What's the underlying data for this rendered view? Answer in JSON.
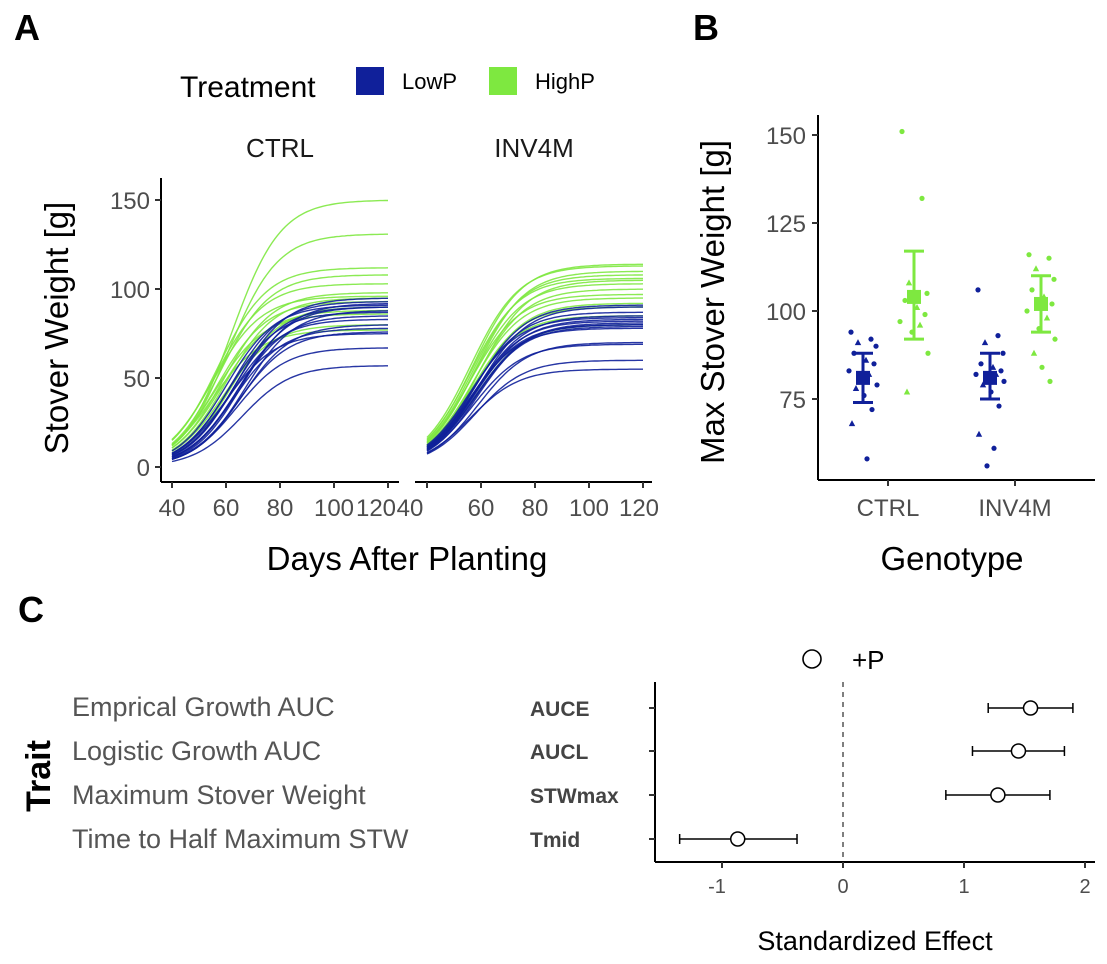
{
  "colors": {
    "LowP": "#10209a",
    "HighP": "#7ee840",
    "axis": "#000000",
    "tick_text": "#4d4d4d"
  },
  "panels": {
    "a": "A",
    "b": "B",
    "c": "C"
  },
  "chart_data": [
    {
      "panel": "A",
      "type": "line",
      "legend": {
        "title": "Treatment",
        "entries": [
          "LowP",
          "HighP"
        ],
        "placement": "top"
      },
      "facets": [
        "CTRL",
        "INV4M"
      ],
      "xlabel": "Days After Planting",
      "ylabel": "Stover Weight [g]",
      "xlim": [
        40,
        120
      ],
      "ylim": [
        0,
        160
      ],
      "xticks": [
        "40",
        "60",
        "80",
        "100",
        "120"
      ],
      "yticks": [
        "0",
        "50",
        "100",
        "150"
      ],
      "curve_model": "logistic",
      "series": [
        {
          "facet": "CTRL",
          "treatment": "LowP",
          "asymptotes": [
            95,
            93,
            92,
            91,
            90,
            90,
            88,
            87,
            85,
            83,
            80,
            78,
            76,
            75,
            67,
            57
          ],
          "midpoints": [
            64,
            62,
            66,
            60,
            65,
            63,
            67,
            61,
            64,
            62,
            66,
            63,
            65,
            60,
            64,
            66
          ]
        },
        {
          "facet": "CTRL",
          "treatment": "HighP",
          "asymptotes": [
            150,
            131,
            112,
            108,
            103,
            98,
            96,
            95,
            93,
            90,
            88,
            86,
            80,
            77
          ],
          "midpoints": [
            62,
            61,
            57,
            58,
            56,
            59,
            55,
            60,
            57,
            62,
            58,
            56,
            59,
            55
          ]
        },
        {
          "facet": "INV4M",
          "treatment": "LowP",
          "asymptotes": [
            91,
            90,
            87,
            85,
            84,
            83,
            82,
            81,
            80,
            80,
            79,
            78,
            70,
            69,
            60,
            55
          ],
          "midpoints": [
            58,
            59,
            57,
            58,
            56,
            58,
            57,
            59,
            58,
            57,
            58,
            56,
            59,
            57,
            58,
            56
          ]
        },
        {
          "facet": "INV4M",
          "treatment": "HighP",
          "asymptotes": [
            114,
            113,
            110,
            108,
            106,
            105,
            103,
            100,
            97,
            95,
            92,
            90,
            85,
            80
          ],
          "midpoints": [
            57,
            56,
            58,
            57,
            56,
            59,
            57,
            58,
            56,
            57,
            58,
            57,
            56,
            58
          ]
        }
      ]
    },
    {
      "panel": "B",
      "type": "scatter",
      "xlabel": "Genotype",
      "ylabel": "Max Stover Weight [g]",
      "categories": [
        "CTRL",
        "INV4M"
      ],
      "ylim": [
        62,
        155
      ],
      "yticks": [
        "75",
        "100",
        "125",
        "150"
      ],
      "groups": [
        {
          "genotype": "CTRL",
          "treatment": "LowP",
          "mean": 81,
          "ci": [
            74,
            88
          ],
          "points": [
            94,
            92,
            91,
            90,
            88,
            86,
            85,
            83,
            82,
            81,
            79,
            78,
            76,
            72,
            68,
            58
          ]
        },
        {
          "genotype": "CTRL",
          "treatment": "HighP",
          "mean": 104,
          "ci": [
            92,
            117
          ],
          "points": [
            151,
            132,
            108,
            105,
            103,
            101,
            99,
            97,
            96,
            94,
            88,
            77
          ]
        },
        {
          "genotype": "INV4M",
          "treatment": "LowP",
          "mean": 81,
          "ci": [
            75,
            88
          ],
          "points": [
            106,
            93,
            91,
            88,
            85,
            84,
            83,
            82,
            82,
            81,
            80,
            79,
            77,
            73,
            65,
            61,
            56
          ]
        },
        {
          "genotype": "INV4M",
          "treatment": "HighP",
          "mean": 102,
          "ci": [
            94,
            110
          ],
          "points": [
            116,
            115,
            112,
            109,
            106,
            104,
            102,
            100,
            98,
            95,
            92,
            88,
            84,
            80
          ]
        }
      ]
    },
    {
      "panel": "C",
      "type": "scatter",
      "legend": {
        "entries": [
          "+P"
        ],
        "placement": "top"
      },
      "xlabel": "Standardized Effect",
      "ylabel": "Trait",
      "xlim": [
        -1.4,
        2.0
      ],
      "xticks": [
        "-1",
        "0",
        "1",
        "2"
      ],
      "reference_line": 0,
      "traits": [
        {
          "name": "Emprical Growth AUC",
          "abbr": "AUCE",
          "estimate": 1.55,
          "ci": [
            1.2,
            1.9
          ]
        },
        {
          "name": "Logistic Growth AUC",
          "abbr": "AUCL",
          "estimate": 1.45,
          "ci": [
            1.07,
            1.83
          ]
        },
        {
          "name": "Maximum Stover Weight",
          "abbr": "STWmax",
          "estimate": 1.28,
          "ci": [
            0.85,
            1.71
          ]
        },
        {
          "name": "Time to Half Maximum STW",
          "abbr": "Tmid",
          "estimate": -0.87,
          "ci": [
            -1.35,
            -0.38
          ]
        }
      ]
    }
  ]
}
